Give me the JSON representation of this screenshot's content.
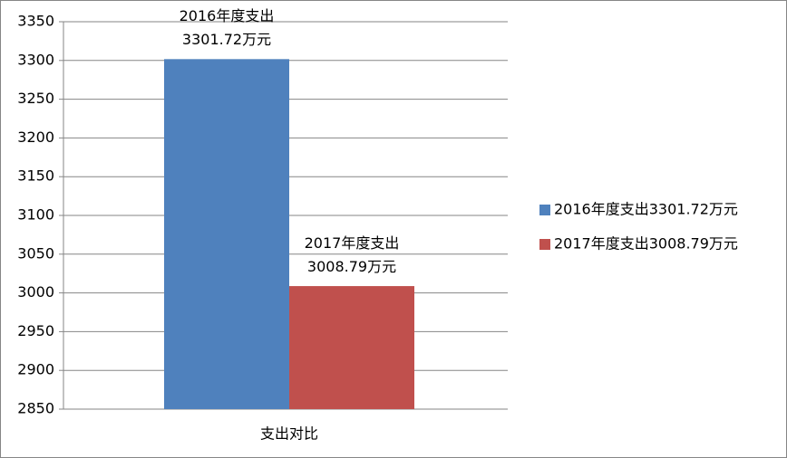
{
  "chart_data": {
    "type": "bar",
    "categories": [
      "支出对比"
    ],
    "series": [
      {
        "name": "2016年度支出3301.72万元",
        "color": "#4f81bd",
        "values": [
          3301.72
        ],
        "value_labels": [
          "2016年度支出\n3301.72万元"
        ]
      },
      {
        "name": "2017年度支出3008.79万元",
        "color": "#c0504d",
        "values": [
          3008.79
        ],
        "value_labels": [
          "2017年度支出\n3008.79万元"
        ]
      }
    ],
    "ylim": [
      2850,
      3350
    ],
    "yticks": [
      2850,
      2900,
      2950,
      3000,
      3050,
      3100,
      3150,
      3200,
      3250,
      3300,
      3350
    ],
    "grid": true,
    "legend": "right"
  }
}
